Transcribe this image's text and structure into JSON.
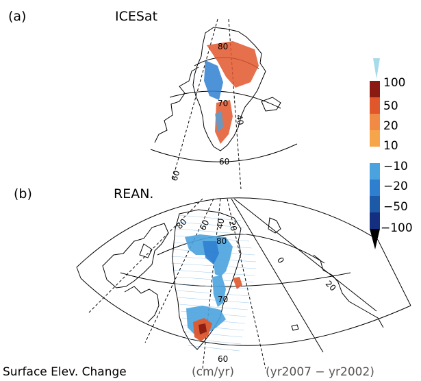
{
  "panels": {
    "a": {
      "letter": "(a)",
      "title": "ICESat"
    },
    "b": {
      "letter": "(b)",
      "title": "REAN."
    }
  },
  "labels_a": {
    "lat80": "80",
    "lat70": "70",
    "lat60": "60",
    "lon40": "40",
    "lon60": "60"
  },
  "labels_b": {
    "lat80": "80",
    "lat70": "70",
    "lat60": "60",
    "lon80": "80",
    "lon60": "60",
    "lon40": "40",
    "lon20": "20",
    "lon0": "0",
    "lon20e": "20"
  },
  "legend": {
    "positive": [
      {
        "label": "100",
        "color": "#8b1a12"
      },
      {
        "label": "50",
        "color": "#e0572b"
      },
      {
        "label": "20",
        "color": "#f08a44"
      },
      {
        "label": "10",
        "color": "#f6a54b"
      }
    ],
    "positive_over_color": "#a7dbea",
    "negative": [
      {
        "label": "−10",
        "color": "#4aa3df"
      },
      {
        "label": "−20",
        "color": "#2f7fd0"
      },
      {
        "label": "−50",
        "color": "#1c5aa8"
      },
      {
        "label": "−100",
        "color": "#142f80"
      }
    ],
    "negative_under_color": "#000000"
  },
  "caption": {
    "main": "Surface Elev. Change",
    "units": "(cm/yr)",
    "period": "(yr2007 − yr2002)"
  }
}
